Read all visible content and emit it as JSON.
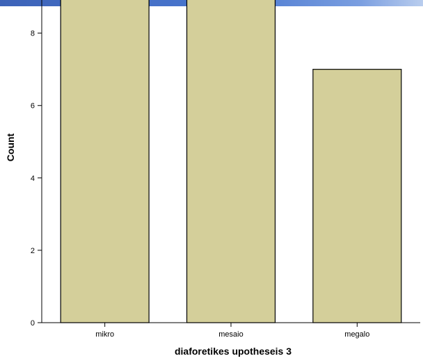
{
  "chart_data": {
    "type": "bar",
    "categories": [
      "mikro",
      "mesaio",
      "megalo"
    ],
    "values": [
      9,
      9,
      7
    ],
    "title": "",
    "xlabel": "diaforetikes upotheseis 3",
    "ylabel": "Count",
    "ylim": [
      0,
      8.8
    ],
    "yticks": [
      0,
      2,
      4,
      6,
      8
    ],
    "grid": false,
    "legend": "none",
    "bar_color": "#d4cf9a",
    "bar_edge_color": "#000000",
    "header_strip_color": "#4a78d0"
  }
}
